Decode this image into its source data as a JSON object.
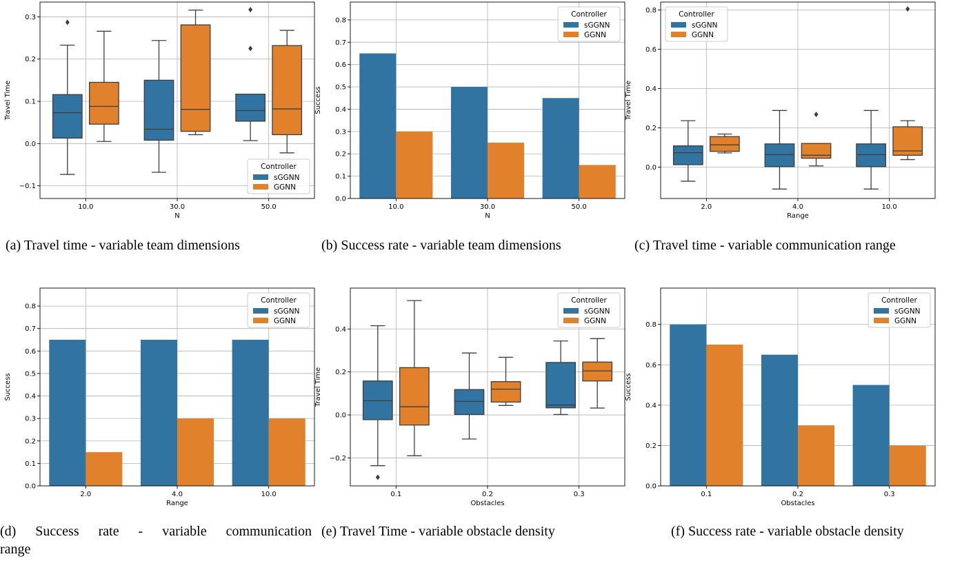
{
  "colors": {
    "sGGNN": "#3274a1",
    "GGNN": "#e1812c",
    "grid": "#b0b0b0",
    "box_edge": "#3d3d3d"
  },
  "captions": [
    "(a) Travel time - variable team dimensions",
    "(b) Success rate - variable team dimensions",
    "(c) Travel time - variable communication range",
    "(d) Success rate - variable communication",
    "range",
    "(e) Travel Time - variable obstacle density",
    "(f) Success rate - variable obstacle density"
  ],
  "chart_data": [
    {
      "type": "box",
      "xlabel": "N",
      "ylabel": "Travel Time",
      "categories": [
        "10.0",
        "30.0",
        "50.0"
      ],
      "ylim": [
        -0.13,
        0.335
      ],
      "yticks": [
        -0.1,
        0.0,
        0.1,
        0.2,
        0.3
      ],
      "ytick_labels": [
        "−0.1",
        "0.0",
        "0.1",
        "0.2",
        "0.3"
      ],
      "grid": true,
      "legend": {
        "title": "Controller",
        "placement": "lower-right"
      },
      "series": [
        {
          "name": "sGGNN",
          "boxes": [
            {
              "whislo": -0.073,
              "q1": 0.013,
              "med": 0.073,
              "q3": 0.116,
              "whishi": 0.233,
              "fliers": [
                0.287
              ]
            },
            {
              "whislo": -0.068,
              "q1": 0.008,
              "med": 0.034,
              "q3": 0.15,
              "whishi": 0.244,
              "fliers": []
            },
            {
              "whislo": 0.007,
              "q1": 0.053,
              "med": 0.078,
              "q3": 0.117,
              "whishi": 0.117,
              "fliers": [
                0.225,
                0.317
              ]
            }
          ]
        },
        {
          "name": "GGNN",
          "boxes": [
            {
              "whislo": 0.005,
              "q1": 0.046,
              "med": 0.088,
              "q3": 0.145,
              "whishi": 0.266,
              "fliers": []
            },
            {
              "whislo": 0.021,
              "q1": 0.029,
              "med": 0.081,
              "q3": 0.281,
              "whishi": 0.316,
              "fliers": []
            },
            {
              "whislo": -0.022,
              "q1": 0.021,
              "med": 0.082,
              "q3": 0.232,
              "whishi": 0.268,
              "fliers": []
            }
          ]
        }
      ]
    },
    {
      "type": "bar",
      "xlabel": "N",
      "ylabel": "Success",
      "categories": [
        "10.0",
        "30.0",
        "50.0"
      ],
      "ylim": [
        0,
        0.88
      ],
      "yticks": [
        0,
        0.1,
        0.2,
        0.3,
        0.4,
        0.5,
        0.6,
        0.7,
        0.8
      ],
      "ytick_labels": [
        "0.0",
        "0.1",
        "0.2",
        "0.3",
        "0.4",
        "0.5",
        "0.6",
        "0.7",
        "0.8"
      ],
      "grid": true,
      "legend": {
        "title": "Controller",
        "placement": "top-right"
      },
      "series": [
        {
          "name": "sGGNN",
          "values": [
            0.65,
            0.5,
            0.45
          ]
        },
        {
          "name": "GGNN",
          "values": [
            0.3,
            0.25,
            0.15
          ]
        }
      ]
    },
    {
      "type": "box",
      "xlabel": "Range",
      "ylabel": "Travel Time",
      "categories": [
        "2.0",
        "4.0",
        "10.0"
      ],
      "ylim": [
        -0.16,
        0.84
      ],
      "yticks": [
        0.0,
        0.2,
        0.4,
        0.6,
        0.8
      ],
      "ytick_labels": [
        "0.0",
        "0.2",
        "0.4",
        "0.6",
        "0.8"
      ],
      "grid": true,
      "legend": {
        "title": "Controller",
        "placement": "top-left"
      },
      "series": [
        {
          "name": "sGGNN",
          "boxes": [
            {
              "whislo": -0.072,
              "q1": 0.012,
              "med": 0.073,
              "q3": 0.108,
              "whishi": 0.236,
              "fliers": []
            },
            {
              "whislo": -0.112,
              "q1": 0.002,
              "med": 0.063,
              "q3": 0.118,
              "whishi": 0.288,
              "fliers": []
            },
            {
              "whislo": -0.112,
              "q1": 0.002,
              "med": 0.063,
              "q3": 0.118,
              "whishi": 0.288,
              "fliers": []
            }
          ]
        },
        {
          "name": "GGNN",
          "boxes": [
            {
              "whislo": 0.072,
              "q1": 0.08,
              "med": 0.113,
              "q3": 0.155,
              "whishi": 0.168,
              "fliers": []
            },
            {
              "whislo": 0.006,
              "q1": 0.045,
              "med": 0.06,
              "q3": 0.12,
              "whishi": 0.12,
              "fliers": [
                0.268
              ]
            },
            {
              "whislo": 0.038,
              "q1": 0.06,
              "med": 0.082,
              "q3": 0.205,
              "whishi": 0.236,
              "fliers": [
                0.805
              ]
            }
          ]
        }
      ]
    },
    {
      "type": "bar",
      "xlabel": "Range",
      "ylabel": "Success",
      "categories": [
        "2.0",
        "4.0",
        "10.0"
      ],
      "ylim": [
        0,
        0.88
      ],
      "yticks": [
        0,
        0.1,
        0.2,
        0.3,
        0.4,
        0.5,
        0.6,
        0.7,
        0.8
      ],
      "ytick_labels": [
        "0.0",
        "0.1",
        "0.2",
        "0.3",
        "0.4",
        "0.5",
        "0.6",
        "0.7",
        "0.8"
      ],
      "grid": true,
      "legend": {
        "title": "Controller",
        "placement": "top-right"
      },
      "series": [
        {
          "name": "sGGNN",
          "values": [
            0.65,
            0.65,
            0.65
          ]
        },
        {
          "name": "GGNN",
          "values": [
            0.15,
            0.3,
            0.3
          ]
        }
      ]
    },
    {
      "type": "box",
      "xlabel": "Obstacles",
      "ylabel": "Travel Time",
      "categories": [
        "0.1",
        "0.2",
        "0.3"
      ],
      "ylim": [
        -0.33,
        0.59
      ],
      "yticks": [
        -0.2,
        0.0,
        0.2,
        0.4
      ],
      "ytick_labels": [
        "−0.2",
        "0.0",
        "0.2",
        "0.4"
      ],
      "grid": true,
      "legend": {
        "title": "Controller",
        "placement": "top-right"
      },
      "series": [
        {
          "name": "sGGNN",
          "boxes": [
            {
              "whislo": -0.236,
              "q1": -0.022,
              "med": 0.066,
              "q3": 0.158,
              "whishi": 0.415,
              "fliers": [
                -0.29
              ]
            },
            {
              "whislo": -0.112,
              "q1": 0.002,
              "med": 0.063,
              "q3": 0.118,
              "whishi": 0.288,
              "fliers": []
            },
            {
              "whislo": 0.002,
              "q1": 0.033,
              "med": 0.046,
              "q3": 0.244,
              "whishi": 0.344,
              "fliers": []
            }
          ]
        },
        {
          "name": "GGNN",
          "boxes": [
            {
              "whislo": -0.19,
              "q1": -0.047,
              "med": 0.038,
              "q3": 0.22,
              "whishi": 0.532,
              "fliers": []
            },
            {
              "whislo": 0.044,
              "q1": 0.06,
              "med": 0.12,
              "q3": 0.155,
              "whishi": 0.268,
              "fliers": []
            },
            {
              "whislo": 0.032,
              "q1": 0.158,
              "med": 0.205,
              "q3": 0.246,
              "whishi": 0.355,
              "fliers": []
            }
          ]
        }
      ]
    },
    {
      "type": "bar",
      "xlabel": "Obstacles",
      "ylabel": "Success",
      "categories": [
        "0.1",
        "0.2",
        "0.3"
      ],
      "ylim": [
        0,
        0.98
      ],
      "yticks": [
        0,
        0.2,
        0.4,
        0.6,
        0.8
      ],
      "ytick_labels": [
        "0.0",
        "0.2",
        "0.4",
        "0.6",
        "0.8"
      ],
      "grid": true,
      "legend": {
        "title": "Controller",
        "placement": "top-right"
      },
      "series": [
        {
          "name": "sGGNN",
          "values": [
            0.8,
            0.65,
            0.5
          ]
        },
        {
          "name": "GGNN",
          "values": [
            0.7,
            0.3,
            0.2
          ]
        }
      ]
    }
  ]
}
